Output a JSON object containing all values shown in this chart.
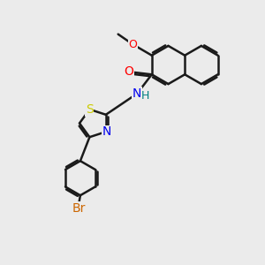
{
  "bg_color": "#ebebeb",
  "bond_color": "#1a1a1a",
  "bond_width": 1.8,
  "dbo": 0.07,
  "atom_colors": {
    "O": "#ff0000",
    "N": "#0000ee",
    "S": "#cccc00",
    "Br": "#cc6600",
    "H": "#008080",
    "C": "#1a1a1a"
  },
  "fs": 10
}
